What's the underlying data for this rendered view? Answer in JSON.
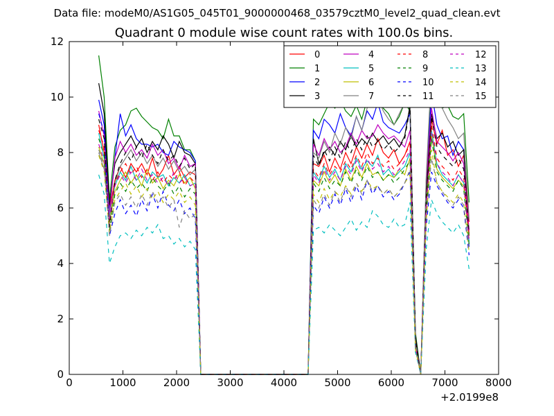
{
  "chart_data": {
    "type": "line",
    "suptitle": "Data file: modeM0/AS1G05_045T01_9000000468_03579cztM0_level2_quad_clean.evt",
    "title": "Quadrant 0 module wise count rates with 100.0s bins.",
    "xlabel": "",
    "ylabel": "",
    "x_offset_label": "+2.0199e8",
    "xlim": [
      0,
      8000
    ],
    "ylim": [
      0,
      12
    ],
    "x_ticks": [
      0,
      1000,
      2000,
      3000,
      4000,
      5000,
      6000,
      7000,
      8000
    ],
    "y_ticks": [
      0,
      2,
      4,
      6,
      8,
      10,
      12
    ],
    "legend_position": "top-right",
    "legend_columns": 4,
    "x": [
      550,
      650,
      750,
      850,
      950,
      1050,
      1150,
      1250,
      1350,
      1450,
      1550,
      1650,
      1750,
      1850,
      1950,
      2050,
      2150,
      2250,
      2350,
      2450,
      2550,
      2650,
      2750,
      2850,
      2950,
      3050,
      3150,
      3250,
      3350,
      3450,
      3550,
      3650,
      3750,
      3850,
      3950,
      4050,
      4150,
      4250,
      4350,
      4450,
      4550,
      4650,
      4750,
      4850,
      4950,
      5050,
      5150,
      5250,
      5350,
      5450,
      5550,
      5650,
      5750,
      5850,
      5950,
      6050,
      6150,
      6250,
      6350,
      6450,
      6550,
      6650,
      6750,
      6850,
      6950,
      7050,
      7150,
      7250,
      7350,
      7450
    ],
    "series": [
      {
        "name": "0",
        "color": "#ff0000",
        "dash": "solid",
        "values": [
          9.0,
          8.0,
          5.9,
          7.0,
          7.5,
          7.1,
          7.6,
          7.3,
          7.6,
          7.2,
          7.8,
          7.1,
          7.4,
          7.9,
          7.2,
          7.5,
          7.1,
          7.3,
          7.2,
          0,
          0,
          0,
          0,
          0,
          0,
          0,
          0,
          0,
          0,
          0,
          0,
          0,
          0,
          0,
          0,
          0,
          0,
          0,
          0,
          0,
          7.6,
          7.5,
          7.9,
          7.3,
          7.8,
          7.4,
          8.0,
          7.6,
          8.2,
          7.8,
          8.3,
          7.9,
          8.5,
          8.0,
          7.8,
          8.1,
          7.6,
          7.9,
          8.4,
          1.2,
          0,
          6.3,
          9.2,
          8.3,
          8.8,
          7.9,
          8.1,
          7.5,
          7.9,
          5.5
        ]
      },
      {
        "name": "1",
        "color": "#008000",
        "dash": "solid",
        "values": [
          11.5,
          10.0,
          6.3,
          8.2,
          8.8,
          9.0,
          9.5,
          9.6,
          9.3,
          9.1,
          8.9,
          8.8,
          8.5,
          9.2,
          8.6,
          8.6,
          8.1,
          8.1,
          7.7,
          0,
          0,
          0,
          0,
          0,
          0,
          0,
          0,
          0,
          0,
          0,
          0,
          0,
          0,
          0,
          0,
          0,
          0,
          0,
          0,
          0,
          9.2,
          9.0,
          9.4,
          9.8,
          9.6,
          9.9,
          9.5,
          9.3,
          9.7,
          9.2,
          9.9,
          10.3,
          10.1,
          9.6,
          9.4,
          9.0,
          9.3,
          9.8,
          9.5,
          1.5,
          0,
          7.0,
          10.3,
          10.0,
          9.6,
          9.7,
          9.3,
          9.2,
          9.4,
          6.2
        ]
      },
      {
        "name": "2",
        "color": "#0000ff",
        "dash": "solid",
        "values": [
          9.9,
          9.0,
          6.0,
          7.8,
          9.4,
          8.6,
          9.0,
          8.5,
          8.3,
          8.3,
          8.2,
          8.3,
          8.0,
          7.9,
          8.4,
          8.2,
          8.1,
          8.0,
          7.7,
          0,
          0,
          0,
          0,
          0,
          0,
          0,
          0,
          0,
          0,
          0,
          0,
          0,
          0,
          0,
          0,
          0,
          0,
          0,
          0,
          0,
          8.8,
          8.5,
          9.2,
          9.0,
          8.7,
          9.4,
          8.9,
          8.6,
          9.3,
          8.8,
          9.5,
          9.2,
          9.8,
          9.1,
          8.9,
          8.8,
          8.7,
          9.0,
          9.4,
          1.3,
          0,
          6.6,
          10.2,
          9.0,
          8.5,
          8.6,
          7.9,
          8.4,
          8.1,
          4.6
        ]
      },
      {
        "name": "3",
        "color": "#000000",
        "dash": "solid",
        "values": [
          10.5,
          9.4,
          6.1,
          7.6,
          8.0,
          8.3,
          8.6,
          8.2,
          8.5,
          8.0,
          8.4,
          8.1,
          8.6,
          8.3,
          7.8,
          8.4,
          8.0,
          7.9,
          7.6,
          0,
          0,
          0,
          0,
          0,
          0,
          0,
          0,
          0,
          0,
          0,
          0,
          0,
          0,
          0,
          0,
          0,
          0,
          0,
          0,
          0,
          8.5,
          7.6,
          8.0,
          8.2,
          7.9,
          8.4,
          8.1,
          8.6,
          8.2,
          8.5,
          8.3,
          8.7,
          8.4,
          8.6,
          8.3,
          8.5,
          8.2,
          8.6,
          9.7,
          1.4,
          0,
          6.5,
          9.4,
          8.5,
          8.7,
          8.2,
          8.4,
          7.9,
          8.1,
          5.0
        ]
      },
      {
        "name": "4",
        "color": "#bf00bf",
        "dash": "solid",
        "values": [
          9.5,
          8.6,
          5.8,
          7.8,
          8.4,
          8.0,
          8.3,
          7.9,
          8.1,
          7.8,
          8.3,
          7.9,
          8.1,
          7.6,
          7.8,
          7.4,
          7.9,
          7.5,
          7.6,
          0,
          0,
          0,
          0,
          0,
          0,
          0,
          0,
          0,
          0,
          0,
          0,
          0,
          0,
          0,
          0,
          0,
          0,
          0,
          0,
          0,
          8.3,
          7.9,
          8.5,
          8.1,
          8.4,
          8.0,
          8.2,
          8.7,
          8.3,
          8.8,
          8.5,
          8.6,
          9.0,
          8.7,
          8.5,
          8.6,
          8.4,
          8.2,
          8.8,
          1.1,
          0,
          6.9,
          9.6,
          8.4,
          8.2,
          8.0,
          7.7,
          8.0,
          7.6,
          5.2
        ]
      },
      {
        "name": "5",
        "color": "#00bfbf",
        "dash": "solid",
        "values": [
          8.7,
          7.8,
          5.7,
          6.8,
          7.3,
          7.0,
          7.5,
          7.0,
          7.2,
          6.9,
          7.3,
          7.1,
          7.2,
          6.8,
          7.1,
          6.9,
          7.2,
          6.8,
          6.9,
          0,
          0,
          0,
          0,
          0,
          0,
          0,
          0,
          0,
          0,
          0,
          0,
          0,
          0,
          0,
          0,
          0,
          0,
          0,
          0,
          0,
          7.3,
          7.0,
          7.5,
          7.1,
          7.4,
          7.0,
          7.6,
          7.3,
          7.8,
          7.4,
          7.7,
          7.5,
          7.9,
          7.2,
          7.4,
          7.1,
          7.3,
          7.5,
          8.0,
          1.0,
          0,
          6.0,
          8.8,
          7.6,
          7.2,
          7.0,
          6.8,
          7.2,
          6.9,
          4.8
        ]
      },
      {
        "name": "6",
        "color": "#bfbf00",
        "dash": "solid",
        "values": [
          8.2,
          7.6,
          5.5,
          6.6,
          7.0,
          7.3,
          6.9,
          7.2,
          6.8,
          7.4,
          6.9,
          7.1,
          6.7,
          7.0,
          6.8,
          7.2,
          6.9,
          7.1,
          6.7,
          0,
          0,
          0,
          0,
          0,
          0,
          0,
          0,
          0,
          0,
          0,
          0,
          0,
          0,
          0,
          0,
          0,
          0,
          0,
          0,
          0,
          7.0,
          6.8,
          7.3,
          6.9,
          7.2,
          6.8,
          7.4,
          7.0,
          7.5,
          7.1,
          7.6,
          7.2,
          7.3,
          7.0,
          7.2,
          7.1,
          7.4,
          7.2,
          7.8,
          1.0,
          0,
          5.9,
          8.6,
          7.4,
          7.1,
          6.9,
          6.7,
          7.0,
          6.8,
          4.9
        ]
      },
      {
        "name": "7",
        "color": "#808080",
        "dash": "solid",
        "values": [
          8.0,
          7.4,
          5.6,
          6.9,
          7.5,
          7.8,
          8.1,
          7.7,
          8.0,
          7.6,
          7.9,
          7.5,
          7.8,
          7.4,
          7.7,
          7.3,
          7.5,
          7.2,
          7.4,
          0,
          0,
          0,
          0,
          0,
          0,
          0,
          0,
          0,
          0,
          0,
          0,
          0,
          0,
          0,
          0,
          0,
          0,
          0,
          0,
          0,
          8.0,
          7.8,
          8.4,
          8.0,
          8.7,
          8.3,
          8.9,
          8.5,
          9.3,
          8.8,
          9.6,
          10.3,
          10.0,
          9.5,
          9.2,
          9.0,
          9.4,
          9.8,
          10.1,
          1.2,
          0,
          7.1,
          11.0,
          10.5,
          9.6,
          9.2,
          8.9,
          8.5,
          8.7,
          5.6
        ]
      },
      {
        "name": "8",
        "color": "#ff0000",
        "dash": "dashed",
        "values": [
          8.8,
          8.2,
          5.4,
          6.9,
          7.3,
          7.6,
          7.2,
          7.5,
          7.1,
          7.4,
          7.0,
          7.3,
          6.9,
          7.2,
          7.0,
          7.3,
          6.8,
          7.1,
          6.9,
          0,
          0,
          0,
          0,
          0,
          0,
          0,
          0,
          0,
          0,
          0,
          0,
          0,
          0,
          0,
          0,
          0,
          0,
          0,
          0,
          0,
          7.4,
          7.1,
          7.6,
          7.2,
          7.5,
          7.3,
          7.7,
          7.4,
          7.9,
          7.5,
          8.0,
          7.6,
          7.8,
          7.5,
          7.7,
          7.4,
          7.6,
          7.9,
          8.3,
          1.1,
          0,
          6.1,
          9.0,
          7.8,
          7.5,
          7.3,
          7.0,
          7.4,
          7.1,
          5.0
        ]
      },
      {
        "name": "9",
        "color": "#008000",
        "dash": "dashed",
        "values": [
          8.5,
          7.9,
          5.2,
          6.5,
          6.9,
          6.6,
          7.0,
          6.7,
          6.9,
          6.6,
          7.1,
          6.8,
          6.6,
          6.9,
          6.5,
          6.8,
          6.4,
          6.7,
          6.5,
          0,
          0,
          0,
          0,
          0,
          0,
          0,
          0,
          0,
          0,
          0,
          0,
          0,
          0,
          0,
          0,
          0,
          0,
          0,
          0,
          0,
          6.9,
          6.6,
          7.1,
          6.7,
          7.0,
          6.8,
          7.3,
          6.9,
          7.4,
          7.0,
          7.5,
          7.1,
          7.3,
          7.0,
          7.2,
          6.9,
          7.1,
          7.4,
          7.7,
          1.0,
          0,
          5.8,
          8.5,
          7.3,
          7.0,
          6.8,
          6.6,
          7.0,
          6.7,
          4.7
        ]
      },
      {
        "name": "10",
        "color": "#0000ff",
        "dash": "dashed",
        "values": [
          9.4,
          8.7,
          5.0,
          5.8,
          6.3,
          5.8,
          6.1,
          5.7,
          6.3,
          5.9,
          6.5,
          6.0,
          6.6,
          6.1,
          5.9,
          6.3,
          5.8,
          6.0,
          5.6,
          0,
          0,
          0,
          0,
          0,
          0,
          0,
          0,
          0,
          0,
          0,
          0,
          0,
          0,
          0,
          0,
          0,
          0,
          0,
          0,
          0,
          6.1,
          5.8,
          6.4,
          6.0,
          6.5,
          6.1,
          6.7,
          6.2,
          6.8,
          6.3,
          7.0,
          6.5,
          6.8,
          6.4,
          6.6,
          6.3,
          6.5,
          6.9,
          7.3,
          0.9,
          0,
          5.3,
          7.3,
          6.8,
          6.5,
          6.2,
          6.0,
          6.3,
          6.0,
          4.3
        ]
      },
      {
        "name": "11",
        "color": "#000000",
        "dash": "dashed",
        "values": [
          9.2,
          8.5,
          5.3,
          7.0,
          7.6,
          8.0,
          7.7,
          8.2,
          7.8,
          8.3,
          7.9,
          7.6,
          8.1,
          7.7,
          7.9,
          7.5,
          7.8,
          7.4,
          7.6,
          0,
          0,
          0,
          0,
          0,
          0,
          0,
          0,
          0,
          0,
          0,
          0,
          0,
          0,
          0,
          0,
          0,
          0,
          0,
          0,
          0,
          7.9,
          7.5,
          8.1,
          7.7,
          8.2,
          7.8,
          8.4,
          8.0,
          8.5,
          8.1,
          8.6,
          8.2,
          8.4,
          8.1,
          8.3,
          8.0,
          8.2,
          8.5,
          9.6,
          1.3,
          0,
          6.4,
          9.3,
          8.2,
          7.9,
          7.7,
          7.5,
          7.8,
          7.4,
          5.1
        ]
      },
      {
        "name": "12",
        "color": "#bf00bf",
        "dash": "dashed",
        "values": [
          8.3,
          7.7,
          5.6,
          6.8,
          7.2,
          6.9,
          7.3,
          7.0,
          7.4,
          7.0,
          7.2,
          6.9,
          7.1,
          6.8,
          7.3,
          6.9,
          7.1,
          6.8,
          6.9,
          0,
          0,
          0,
          0,
          0,
          0,
          0,
          0,
          0,
          0,
          0,
          0,
          0,
          0,
          0,
          0,
          0,
          0,
          0,
          0,
          0,
          7.2,
          6.9,
          7.4,
          7.0,
          7.3,
          7.0,
          7.5,
          7.2,
          7.7,
          7.3,
          7.8,
          7.4,
          7.6,
          7.3,
          7.5,
          7.2,
          7.4,
          7.7,
          8.1,
          1.0,
          0,
          6.0,
          8.7,
          7.6,
          7.3,
          7.1,
          6.8,
          7.2,
          6.9,
          4.8
        ]
      },
      {
        "name": "13",
        "color": "#00bfbf",
        "dash": "dashed",
        "values": [
          7.2,
          6.5,
          4.0,
          4.6,
          5.0,
          5.1,
          4.9,
          5.2,
          5.0,
          5.3,
          5.1,
          5.4,
          4.9,
          5.0,
          4.7,
          4.9,
          4.6,
          4.8,
          4.5,
          0,
          0,
          0,
          0,
          0,
          0,
          0,
          0,
          0,
          0,
          0,
          0,
          0,
          0,
          0,
          0,
          0,
          0,
          0,
          0,
          0,
          5.2,
          5.3,
          5.1,
          5.4,
          5.2,
          5.0,
          5.3,
          5.6,
          5.2,
          5.5,
          5.3,
          5.9,
          5.7,
          5.4,
          5.3,
          5.6,
          5.3,
          5.4,
          6.2,
          0.8,
          0,
          4.5,
          6.3,
          5.8,
          5.5,
          5.3,
          5.1,
          5.4,
          5.0,
          3.8
        ]
      },
      {
        "name": "14",
        "color": "#bfbf00",
        "dash": "dashed",
        "values": [
          7.9,
          7.3,
          5.1,
          6.3,
          6.6,
          6.9,
          6.5,
          6.8,
          6.4,
          6.7,
          6.3,
          6.6,
          6.2,
          6.5,
          6.3,
          6.6,
          6.2,
          6.4,
          6.1,
          0,
          0,
          0,
          0,
          0,
          0,
          0,
          0,
          0,
          0,
          0,
          0,
          0,
          0,
          0,
          0,
          0,
          0,
          0,
          0,
          0,
          6.5,
          6.2,
          6.7,
          6.3,
          6.6,
          6.4,
          6.8,
          6.5,
          6.9,
          6.6,
          7.0,
          6.7,
          6.8,
          6.5,
          6.7,
          6.4,
          6.6,
          6.9,
          7.2,
          0.9,
          0,
          5.5,
          8.1,
          6.9,
          6.6,
          6.4,
          6.2,
          6.5,
          6.2,
          4.4
        ]
      },
      {
        "name": "15",
        "color": "#808080",
        "dash": "dashed",
        "values": [
          8.1,
          7.5,
          5.0,
          6.2,
          6.5,
          6.1,
          6.4,
          6.0,
          6.5,
          6.1,
          6.6,
          6.2,
          6.4,
          6.0,
          6.3,
          5.3,
          5.9,
          5.6,
          5.8,
          0,
          0,
          0,
          0,
          0,
          0,
          0,
          0,
          0,
          0,
          0,
          0,
          0,
          0,
          0,
          0,
          0,
          0,
          0,
          0,
          0,
          6.3,
          6.0,
          6.5,
          6.1,
          6.6,
          6.2,
          6.8,
          6.4,
          6.9,
          6.5,
          7.0,
          6.6,
          6.8,
          6.5,
          6.7,
          6.4,
          6.6,
          6.9,
          7.4,
          0.9,
          0,
          5.6,
          7.8,
          6.9,
          6.6,
          6.3,
          6.1,
          6.4,
          6.1,
          4.5
        ]
      }
    ]
  }
}
